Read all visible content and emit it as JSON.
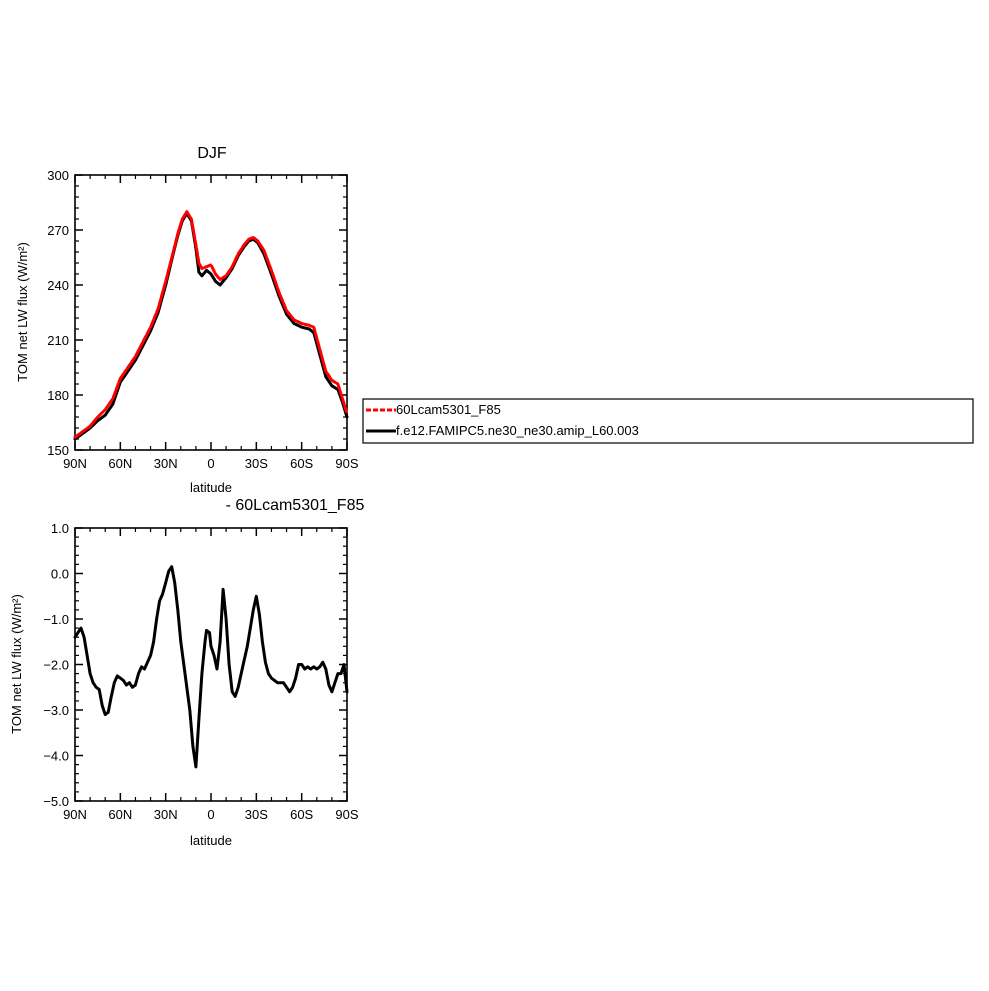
{
  "chart_data": [
    {
      "type": "line",
      "title": "DJF",
      "xlabel": "latitude",
      "ylabel": "TOM net LW flux (W/m²)",
      "xlim": [
        90,
        -90
      ],
      "ylim": [
        150,
        300
      ],
      "xticks": [
        {
          "value": 90,
          "label": "90N"
        },
        {
          "value": 60,
          "label": "60N"
        },
        {
          "value": 30,
          "label": "30N"
        },
        {
          "value": 0,
          "label": "0"
        },
        {
          "value": -30,
          "label": "30S"
        },
        {
          "value": -60,
          "label": "60S"
        },
        {
          "value": -90,
          "label": "90S"
        }
      ],
      "yticks": [
        {
          "value": 150,
          "label": "150"
        },
        {
          "value": 180,
          "label": "180"
        },
        {
          "value": 210,
          "label": "210"
        },
        {
          "value": 240,
          "label": "240"
        },
        {
          "value": 270,
          "label": "270"
        },
        {
          "value": 300,
          "label": "300"
        }
      ],
      "legend_position": "right",
      "series": [
        {
          "name": "60Lcam5301_F85",
          "color": "#ff0000",
          "dashed": true,
          "points": [
            [
              90,
              157
            ],
            [
              85,
              160
            ],
            [
              80,
              163
            ],
            [
              75,
              168
            ],
            [
              70,
              172
            ],
            [
              65,
              178
            ],
            [
              60,
              189
            ],
            [
              55,
              195
            ],
            [
              50,
              201
            ],
            [
              45,
              209
            ],
            [
              40,
              217
            ],
            [
              35,
              227
            ],
            [
              30,
              242
            ],
            [
              25,
              258
            ],
            [
              22,
              268
            ],
            [
              19,
              276
            ],
            [
              16,
              280
            ],
            [
              13,
              276
            ],
            [
              10,
              262
            ],
            [
              8,
              252
            ],
            [
              6,
              249
            ],
            [
              3,
              250
            ],
            [
              0,
              251
            ],
            [
              -3,
              246
            ],
            [
              -6,
              243
            ],
            [
              -10,
              245
            ],
            [
              -14,
              250
            ],
            [
              -18,
              257
            ],
            [
              -22,
              262
            ],
            [
              -25,
              265
            ],
            [
              -28,
              266
            ],
            [
              -31,
              264
            ],
            [
              -35,
              259
            ],
            [
              -40,
              248
            ],
            [
              -45,
              236
            ],
            [
              -50,
              226
            ],
            [
              -55,
              221
            ],
            [
              -60,
              219
            ],
            [
              -65,
              218
            ],
            [
              -68,
              217
            ],
            [
              -72,
              205
            ],
            [
              -76,
              193
            ],
            [
              -80,
              188
            ],
            [
              -84,
              186
            ],
            [
              -87,
              178
            ],
            [
              -90,
              170
            ]
          ]
        },
        {
          "name": "f.e12.FAMIPC5.ne30_ne30.amip_L60.003",
          "color": "#000000",
          "dashed": false,
          "points": [
            [
              90,
              156
            ],
            [
              85,
              159
            ],
            [
              80,
              162
            ],
            [
              75,
              166
            ],
            [
              70,
              169
            ],
            [
              65,
              175
            ],
            [
              60,
              187
            ],
            [
              55,
              193
            ],
            [
              50,
              199
            ],
            [
              45,
              207
            ],
            [
              40,
              215
            ],
            [
              35,
              225
            ],
            [
              30,
              240
            ],
            [
              25,
              257
            ],
            [
              22,
              267
            ],
            [
              19,
              275
            ],
            [
              16,
              279
            ],
            [
              13,
              275
            ],
            [
              10,
              260
            ],
            [
              8,
              247
            ],
            [
              6,
              245
            ],
            [
              3,
              248
            ],
            [
              0,
              246
            ],
            [
              -3,
              242
            ],
            [
              -6,
              240
            ],
            [
              -10,
              244
            ],
            [
              -14,
              249
            ],
            [
              -18,
              256
            ],
            [
              -22,
              261
            ],
            [
              -25,
              264
            ],
            [
              -28,
              265
            ],
            [
              -31,
              263
            ],
            [
              -35,
              257
            ],
            [
              -40,
              246
            ],
            [
              -45,
              234
            ],
            [
              -50,
              224
            ],
            [
              -55,
              219
            ],
            [
              -60,
              217
            ],
            [
              -65,
              216
            ],
            [
              -68,
              214
            ],
            [
              -72,
              202
            ],
            [
              -76,
              190
            ],
            [
              -80,
              185
            ],
            [
              -84,
              183
            ],
            [
              -87,
              176
            ],
            [
              -90,
              168
            ]
          ]
        }
      ]
    },
    {
      "type": "line",
      "title": "- 60Lcam5301_F85",
      "xlabel": "latitude",
      "ylabel": "TOM net LW flux (W/m²)",
      "xlim": [
        90,
        -90
      ],
      "ylim": [
        -5.0,
        1.0
      ],
      "xticks": [
        {
          "value": 90,
          "label": "90N"
        },
        {
          "value": 60,
          "label": "60N"
        },
        {
          "value": 30,
          "label": "30N"
        },
        {
          "value": 0,
          "label": "0"
        },
        {
          "value": -30,
          "label": "30S"
        },
        {
          "value": -60,
          "label": "60S"
        },
        {
          "value": -90,
          "label": "90S"
        }
      ],
      "yticks": [
        {
          "value": -5.0,
          "label": "−5.0"
        },
        {
          "value": -4.0,
          "label": "−4.0"
        },
        {
          "value": -3.0,
          "label": "−3.0"
        },
        {
          "value": -2.0,
          "label": "−2.0"
        },
        {
          "value": -1.0,
          "label": "−1.0"
        },
        {
          "value": 0.0,
          "label": "0.0"
        },
        {
          "value": 1.0,
          "label": "1.0"
        }
      ],
      "series": [
        {
          "color": "#000000",
          "dashed": false,
          "points": [
            [
              90,
              -1.4
            ],
            [
              88,
              -1.3
            ],
            [
              86,
              -1.2
            ],
            [
              84,
              -1.4
            ],
            [
              82,
              -1.8
            ],
            [
              80,
              -2.2
            ],
            [
              78,
              -2.4
            ],
            [
              76,
              -2.5
            ],
            [
              74,
              -2.55
            ],
            [
              72,
              -2.9
            ],
            [
              70,
              -3.1
            ],
            [
              68,
              -3.05
            ],
            [
              66,
              -2.7
            ],
            [
              64,
              -2.4
            ],
            [
              62,
              -2.25
            ],
            [
              60,
              -2.3
            ],
            [
              58,
              -2.35
            ],
            [
              56,
              -2.45
            ],
            [
              54,
              -2.4
            ],
            [
              52,
              -2.5
            ],
            [
              50,
              -2.45
            ],
            [
              48,
              -2.2
            ],
            [
              46,
              -2.05
            ],
            [
              44,
              -2.1
            ],
            [
              42,
              -1.95
            ],
            [
              40,
              -1.8
            ],
            [
              38,
              -1.5
            ],
            [
              36,
              -1.0
            ],
            [
              34,
              -0.6
            ],
            [
              32,
              -0.45
            ],
            [
              30,
              -0.2
            ],
            [
              28,
              0.05
            ],
            [
              26,
              0.15
            ],
            [
              24,
              -0.2
            ],
            [
              22,
              -0.8
            ],
            [
              20,
              -1.5
            ],
            [
              18,
              -2.0
            ],
            [
              16,
              -2.5
            ],
            [
              14,
              -3.0
            ],
            [
              12,
              -3.8
            ],
            [
              10,
              -4.25
            ],
            [
              8,
              -3.2
            ],
            [
              6,
              -2.2
            ],
            [
              4,
              -1.5
            ],
            [
              3,
              -1.25
            ],
            [
              1,
              -1.3
            ],
            [
              0,
              -1.6
            ],
            [
              -2,
              -1.8
            ],
            [
              -4,
              -2.1
            ],
            [
              -6,
              -1.5
            ],
            [
              -8,
              -0.35
            ],
            [
              -10,
              -1.0
            ],
            [
              -12,
              -2.0
            ],
            [
              -14,
              -2.6
            ],
            [
              -16,
              -2.7
            ],
            [
              -18,
              -2.5
            ],
            [
              -20,
              -2.2
            ],
            [
              -22,
              -1.9
            ],
            [
              -24,
              -1.6
            ],
            [
              -26,
              -1.2
            ],
            [
              -28,
              -0.8
            ],
            [
              -30,
              -0.5
            ],
            [
              -32,
              -0.9
            ],
            [
              -34,
              -1.5
            ],
            [
              -36,
              -1.95
            ],
            [
              -38,
              -2.2
            ],
            [
              -40,
              -2.3
            ],
            [
              -42,
              -2.35
            ],
            [
              -44,
              -2.4
            ],
            [
              -46,
              -2.4
            ],
            [
              -48,
              -2.4
            ],
            [
              -50,
              -2.5
            ],
            [
              -52,
              -2.6
            ],
            [
              -54,
              -2.5
            ],
            [
              -56,
              -2.3
            ],
            [
              -58,
              -2.0
            ],
            [
              -60,
              -2.0
            ],
            [
              -62,
              -2.1
            ],
            [
              -64,
              -2.05
            ],
            [
              -66,
              -2.1
            ],
            [
              -68,
              -2.05
            ],
            [
              -70,
              -2.1
            ],
            [
              -72,
              -2.05
            ],
            [
              -74,
              -1.95
            ],
            [
              -76,
              -2.1
            ],
            [
              -78,
              -2.45
            ],
            [
              -80,
              -2.6
            ],
            [
              -82,
              -2.4
            ],
            [
              -84,
              -2.2
            ],
            [
              -86,
              -2.2
            ],
            [
              -88,
              -2.0
            ],
            [
              -90,
              -2.6
            ]
          ]
        }
      ]
    }
  ]
}
